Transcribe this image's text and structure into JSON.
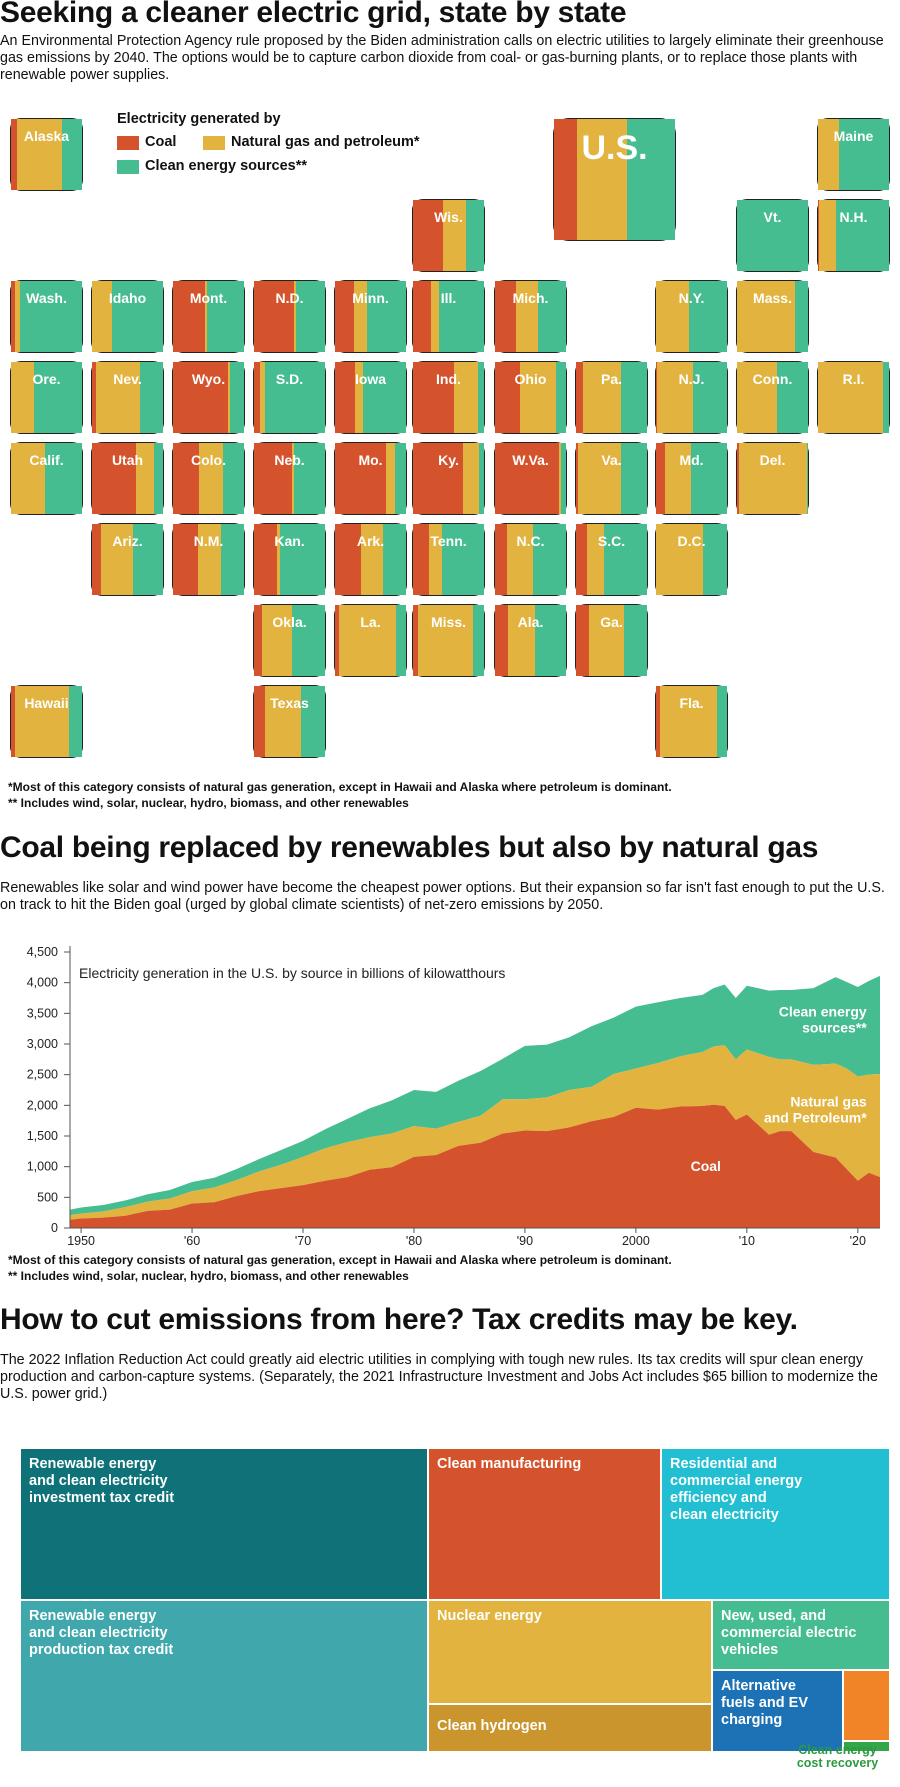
{
  "section1": {
    "title": "Seeking a cleaner electric grid, state by state",
    "intro": "An Environmental Protection Agency rule proposed by the Biden administration calls on electric utilities to largely eliminate their greenhouse gas emissions by 2040. The options would be to capture carbon dioxide from coal- or gas-burning plants, or to replace those plants with renewable power supplies.",
    "legend": {
      "title": "Electricity generated by",
      "items": [
        {
          "label": "Coal",
          "color": "#d4532d"
        },
        {
          "label": "Natural gas and petroleum*",
          "color": "#e2b33e"
        },
        {
          "label": "Clean energy sources**",
          "color": "#46bd91"
        }
      ]
    },
    "states": [
      {
        "name": "U.S.",
        "coal": 0.19,
        "gas": 0.41,
        "clean": 0.4
      },
      {
        "name": "Alaska",
        "coal": 0.09,
        "gas": 0.63,
        "clean": 0.28
      },
      {
        "name": "Maine",
        "coal": 0.0,
        "gas": 0.3,
        "clean": 0.7
      },
      {
        "name": "Wis.",
        "coal": 0.42,
        "gas": 0.33,
        "clean": 0.25
      },
      {
        "name": "Vt.",
        "coal": 0.0,
        "gas": 0.0,
        "clean": 1.0
      },
      {
        "name": "N.H.",
        "coal": 0.01,
        "gas": 0.25,
        "clean": 0.74
      },
      {
        "name": "Wash.",
        "coal": 0.05,
        "gas": 0.08,
        "clean": 0.87
      },
      {
        "name": "Idaho",
        "coal": 0.0,
        "gas": 0.28,
        "clean": 0.72
      },
      {
        "name": "Mont.",
        "coal": 0.45,
        "gas": 0.03,
        "clean": 0.52
      },
      {
        "name": "N.D.",
        "coal": 0.56,
        "gas": 0.03,
        "clean": 0.41
      },
      {
        "name": "Minn.",
        "coal": 0.27,
        "gas": 0.18,
        "clean": 0.55
      },
      {
        "name": "Ill.",
        "coal": 0.25,
        "gas": 0.11,
        "clean": 0.64
      },
      {
        "name": "Mich.",
        "coal": 0.3,
        "gas": 0.3,
        "clean": 0.4
      },
      {
        "name": "N.Y.",
        "coal": 0.0,
        "gas": 0.47,
        "clean": 0.53
      },
      {
        "name": "Mass.",
        "coal": 0.0,
        "gas": 0.82,
        "clean": 0.18
      },
      {
        "name": "Ore.",
        "coal": 0.0,
        "gas": 0.33,
        "clean": 0.67
      },
      {
        "name": "Nev.",
        "coal": 0.05,
        "gas": 0.63,
        "clean": 0.32
      },
      {
        "name": "Wyo.",
        "coal": 0.78,
        "gas": 0.02,
        "clean": 0.2
      },
      {
        "name": "S.D.",
        "coal": 0.08,
        "gas": 0.08,
        "clean": 0.84
      },
      {
        "name": "Iowa",
        "coal": 0.28,
        "gas": 0.12,
        "clean": 0.6
      },
      {
        "name": "Ind.",
        "coal": 0.58,
        "gas": 0.33,
        "clean": 0.09
      },
      {
        "name": "Ohio",
        "coal": 0.35,
        "gas": 0.51,
        "clean": 0.14
      },
      {
        "name": "Pa.",
        "coal": 0.1,
        "gas": 0.54,
        "clean": 0.36
      },
      {
        "name": "N.J.",
        "coal": 0.01,
        "gas": 0.51,
        "clean": 0.48
      },
      {
        "name": "Conn.",
        "coal": 0.0,
        "gas": 0.56,
        "clean": 0.44
      },
      {
        "name": "R.I.",
        "coal": 0.0,
        "gas": 0.92,
        "clean": 0.08
      },
      {
        "name": "Calif.",
        "coal": 0.0,
        "gas": 0.48,
        "clean": 0.52
      },
      {
        "name": "Utah",
        "coal": 0.62,
        "gas": 0.25,
        "clean": 0.13
      },
      {
        "name": "Colo.",
        "coal": 0.37,
        "gas": 0.33,
        "clean": 0.3
      },
      {
        "name": "Neb.",
        "coal": 0.53,
        "gas": 0.03,
        "clean": 0.44
      },
      {
        "name": "Mo.",
        "coal": 0.72,
        "gas": 0.12,
        "clean": 0.16
      },
      {
        "name": "Ky.",
        "coal": 0.7,
        "gas": 0.23,
        "clean": 0.07
      },
      {
        "name": "W.Va.",
        "coal": 0.9,
        "gas": 0.03,
        "clean": 0.07
      },
      {
        "name": "Va.",
        "coal": 0.03,
        "gas": 0.6,
        "clean": 0.37
      },
      {
        "name": "Md.",
        "coal": 0.12,
        "gas": 0.38,
        "clean": 0.5
      },
      {
        "name": "Del.",
        "coal": 0.03,
        "gas": 0.95,
        "clean": 0.02
      },
      {
        "name": "Ariz.",
        "coal": 0.13,
        "gas": 0.45,
        "clean": 0.42
      },
      {
        "name": "N.M.",
        "coal": 0.35,
        "gas": 0.33,
        "clean": 0.32
      },
      {
        "name": "Kan.",
        "coal": 0.32,
        "gas": 0.05,
        "clean": 0.63
      },
      {
        "name": "Ark.",
        "coal": 0.36,
        "gas": 0.32,
        "clean": 0.32
      },
      {
        "name": "Tenn.",
        "coal": 0.22,
        "gas": 0.19,
        "clean": 0.59
      },
      {
        "name": "N.C.",
        "coal": 0.17,
        "gas": 0.36,
        "clean": 0.47
      },
      {
        "name": "S.C.",
        "coal": 0.16,
        "gas": 0.24,
        "clean": 0.6
      },
      {
        "name": "D.C.",
        "coal": 0.0,
        "gas": 0.66,
        "clean": 0.34
      },
      {
        "name": "Okla.",
        "coal": 0.11,
        "gas": 0.42,
        "clean": 0.47
      },
      {
        "name": "La.",
        "coal": 0.06,
        "gas": 0.8,
        "clean": 0.14
      },
      {
        "name": "Miss.",
        "coal": 0.07,
        "gas": 0.77,
        "clean": 0.16
      },
      {
        "name": "Ala.",
        "coal": 0.18,
        "gas": 0.39,
        "clean": 0.43
      },
      {
        "name": "Ga.",
        "coal": 0.18,
        "gas": 0.5,
        "clean": 0.32
      },
      {
        "name": "Hawaii",
        "coal": 0.05,
        "gas": 0.77,
        "clean": 0.18
      },
      {
        "name": "Texas",
        "coal": 0.16,
        "gas": 0.5,
        "clean": 0.34
      },
      {
        "name": "Fla.",
        "coal": 0.06,
        "gas": 0.8,
        "clean": 0.14
      }
    ],
    "footnote1": "*Most of this category consists of natural gas generation, except in Hawaii and Alaska where petroleum is dominant.",
    "footnote2": "** Includes wind, solar, nuclear, hydro, biomass, and other renewables"
  },
  "section2": {
    "title": "Coal being replaced by renewables but also by natural gas",
    "intro": "Renewables like solar and wind power have become the cheapest power options. But their expansion so far isn't fast enough to put the U.S. on track to hit the Biden goal (urged by global climate scientists) of net-zero emissions by 2050.",
    "footnote1": "*Most of this category consists of natural gas generation, except in Hawaii and Alaska where petroleum is dominant.",
    "footnote2": "** Includes wind, solar, nuclear, hydro, biomass, and other renewables"
  },
  "chart_data": {
    "type": "area",
    "title": "Electricity generation in the U.S. by source in billions of kilowatthours",
    "xlabel": "",
    "ylabel": "",
    "ylim": [
      0,
      4500
    ],
    "xlim": [
      1949,
      2022
    ],
    "yticks": [
      "0",
      "500",
      "1,000",
      "1,500",
      "2,000",
      "2,500",
      "3,000",
      "3,500",
      "4,000",
      "4,500"
    ],
    "xticks": [
      {
        "year": 1950,
        "label": "1950"
      },
      {
        "year": 1960,
        "label": "'60"
      },
      {
        "year": 1970,
        "label": "'70"
      },
      {
        "year": 1980,
        "label": "'80"
      },
      {
        "year": 1990,
        "label": "'90"
      },
      {
        "year": 2000,
        "label": "2000"
      },
      {
        "year": 2010,
        "label": "'10"
      },
      {
        "year": 2020,
        "label": "'20"
      }
    ],
    "x": [
      1949,
      1950,
      1952,
      1954,
      1956,
      1958,
      1960,
      1962,
      1964,
      1966,
      1968,
      1970,
      1972,
      1974,
      1976,
      1978,
      1980,
      1982,
      1984,
      1986,
      1988,
      1990,
      1992,
      1994,
      1996,
      1998,
      2000,
      2002,
      2004,
      2006,
      2007,
      2008,
      2009,
      2010,
      2012,
      2013,
      2014,
      2016,
      2018,
      2019,
      2020,
      2021,
      2022
    ],
    "series": [
      {
        "name": "Coal",
        "color": "#d4532d",
        "values": [
          135,
          155,
          170,
          200,
          280,
          300,
          400,
          420,
          520,
          600,
          650,
          700,
          770,
          830,
          950,
          990,
          1160,
          1190,
          1340,
          1390,
          1540,
          1590,
          1580,
          1640,
          1740,
          1810,
          1960,
          1930,
          1980,
          1990,
          2010,
          1990,
          1760,
          1850,
          1520,
          1580,
          1580,
          1240,
          1150,
          960,
          770,
          900,
          830
        ]
      },
      {
        "name": "Natural gas and Petroleum*",
        "color": "#e2b33e",
        "values": [
          75,
          80,
          100,
          140,
          150,
          180,
          200,
          240,
          260,
          320,
          380,
          460,
          530,
          570,
          530,
          550,
          500,
          430,
          390,
          440,
          560,
          510,
          550,
          610,
          560,
          700,
          640,
          760,
          820,
          880,
          950,
          990,
          990,
          1060,
          1270,
          1170,
          1170,
          1420,
          1530,
          1640,
          1700,
          1600,
          1680
        ]
      },
      {
        "name": "Clean energy sources**",
        "color": "#46bd91",
        "values": [
          90,
          100,
          105,
          110,
          120,
          140,
          150,
          160,
          180,
          200,
          240,
          260,
          310,
          380,
          470,
          540,
          590,
          600,
          670,
          730,
          660,
          870,
          860,
          860,
          990,
          920,
          1010,
          990,
          950,
          930,
          950,
          990,
          1000,
          1040,
          1080,
          1130,
          1130,
          1250,
          1410,
          1410,
          1460,
          1530,
          1600
        ]
      }
    ],
    "annotations": [
      {
        "text": "Clean energy\nsources**",
        "series": 2
      },
      {
        "text": "Natural gas\nand Petroleum*",
        "series": 1
      },
      {
        "text": "Coal",
        "series": 0
      }
    ]
  },
  "section3": {
    "title": "How to cut emissions from here? Tax credits may be key.",
    "intro": "The 2022 Inflation Reduction Act could greatly aid electric utilities in complying with tough new rules. Its tax credits will spur clean energy production and carbon-capture systems. (Separately, the 2021 Infrastructure Investment and Jobs Act includes $65 billion to modernize the U.S. power grid.)",
    "treemap": [
      {
        "label": "Renewable energy\nand clean electricity\ninvestment tax credit",
        "color": "#0f7279"
      },
      {
        "label": "Renewable energy\nand clean electricity\nproduction tax credit",
        "color": "#40a7ad"
      },
      {
        "label": "Clean manufacturing",
        "color": "#d4532d"
      },
      {
        "label": "Residential and\ncommercial energy\nefficiency and\nclean electricity",
        "color": "#21bfd1"
      },
      {
        "label": "Nuclear energy",
        "color": "#e2b33e"
      },
      {
        "label": "Clean hydrogen",
        "color": "#c9952c"
      },
      {
        "label": "New, used, and\ncommercial electric\nvehicles",
        "color": "#46bd91"
      },
      {
        "label": "Alternative\nfuels and EV\ncharging",
        "color": "#1c72b5"
      },
      {
        "label": "",
        "color": "#f08426"
      },
      {
        "label": "",
        "color": "#33a64a"
      }
    ],
    "treemap_callout": "Clean energy\ncost recovery"
  }
}
